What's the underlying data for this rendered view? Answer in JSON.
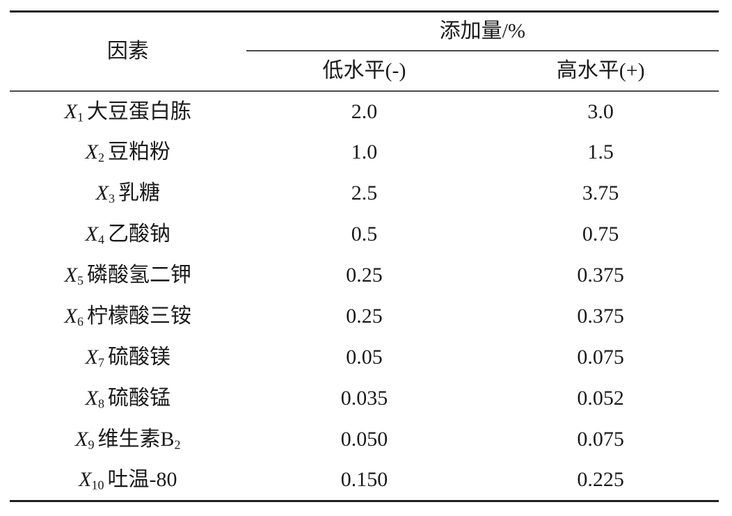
{
  "table": {
    "header": {
      "factor": "因素",
      "amount_group": "添加量/%",
      "low": "低水平(-)",
      "high": "高水平(+)"
    },
    "rows": [
      {
        "symbol": "X",
        "sub": "1",
        "name": "大豆蛋白胨",
        "name_sub": "",
        "low": "2.0",
        "high": "3.0"
      },
      {
        "symbol": "X",
        "sub": "2",
        "name": "豆粕粉",
        "name_sub": "",
        "low": "1.0",
        "high": "1.5"
      },
      {
        "symbol": "X",
        "sub": "3",
        "name": "乳糖",
        "name_sub": "",
        "low": "2.5",
        "high": "3.75"
      },
      {
        "symbol": "X",
        "sub": "4",
        "name": "乙酸钠",
        "name_sub": "",
        "low": "0.5",
        "high": "0.75"
      },
      {
        "symbol": "X",
        "sub": "5",
        "name": "磷酸氢二钾",
        "name_sub": "",
        "low": "0.25",
        "high": "0.375"
      },
      {
        "symbol": "X",
        "sub": "6",
        "name": "柠檬酸三铵",
        "name_sub": "",
        "low": "0.25",
        "high": "0.375"
      },
      {
        "symbol": "X",
        "sub": "7",
        "name": "硫酸镁",
        "name_sub": "",
        "low": "0.05",
        "high": "0.075"
      },
      {
        "symbol": "X",
        "sub": "8",
        "name": "硫酸锰",
        "name_sub": "",
        "low": "0.035",
        "high": "0.052"
      },
      {
        "symbol": "X",
        "sub": "9",
        "name": "维生素B",
        "name_sub": "2",
        "low": "0.050",
        "high": "0.075"
      },
      {
        "symbol": "X",
        "sub": "10",
        "name": "吐温-80",
        "name_sub": "",
        "low": "0.150",
        "high": "0.225"
      }
    ]
  },
  "colors": {
    "text": "#1a1a1a",
    "rule_thick": "#1f1f1f",
    "rule_thin": "#4a4a4a",
    "background": "#ffffff"
  },
  "chart_data": {
    "type": "table",
    "title": "",
    "columns": [
      "因素",
      "低水平(-)",
      "高水平(+)"
    ],
    "column_group": {
      "label": "添加量/%",
      "spans": [
        "低水平(-)",
        "高水平(+)"
      ]
    },
    "rows": [
      [
        "X1大豆蛋白胨",
        2.0,
        3.0
      ],
      [
        "X2豆粕粉",
        1.0,
        1.5
      ],
      [
        "X3乳糖",
        2.5,
        3.75
      ],
      [
        "X4乙酸钠",
        0.5,
        0.75
      ],
      [
        "X5磷酸氢二钾",
        0.25,
        0.375
      ],
      [
        "X6柠檬酸三铵",
        0.25,
        0.375
      ],
      [
        "X7硫酸镁",
        0.05,
        0.075
      ],
      [
        "X8硫酸锰",
        0.035,
        0.052
      ],
      [
        "X9维生素B2",
        0.05,
        0.075
      ],
      [
        "X10吐温-80",
        0.15,
        0.225
      ]
    ]
  }
}
